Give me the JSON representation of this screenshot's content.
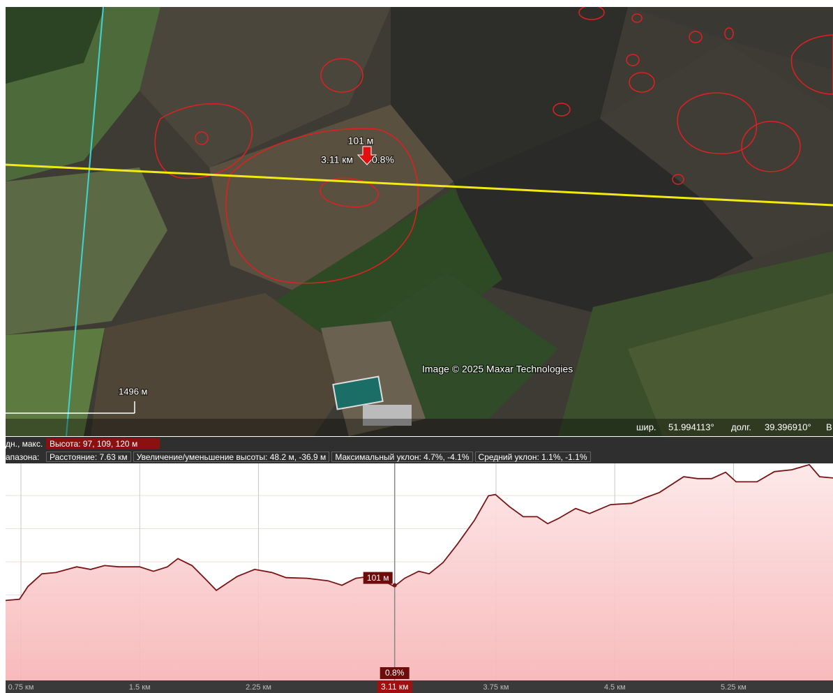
{
  "map": {
    "attribution": "Image © 2025 Maxar Technologies",
    "scale_label": "1496 м",
    "status": {
      "lat_label": "шир.",
      "lat": "51.994113°",
      "lon_label": "долг.",
      "lon": "39.396910°",
      "cut": "В"
    }
  },
  "info": {
    "row1_label": "дн., макс.",
    "elevation": "Высота: 97, 109, 120 м",
    "row2_label": "апазона:",
    "distance": "Расстояние: 7.63 км",
    "gain_loss": "Увеличение/уменьшение высоты: 48.2 м, -36.9 м",
    "max_slope": "Максимальный уклон: 4.7%, -4.1%",
    "avg_slope": "Средний уклон: 1.1%, -1.1%"
  },
  "chart_data": {
    "type": "line",
    "color": "#7a1414",
    "x": [
      0.653,
      0.741,
      0.794,
      0.882,
      0.97,
      1.102,
      1.19,
      1.278,
      1.367,
      1.499,
      1.587,
      1.675,
      1.741,
      1.83,
      1.918,
      1.984,
      2.05,
      2.116,
      2.226,
      2.336,
      2.424,
      2.557,
      2.689,
      2.777,
      2.865,
      2.953,
      3.041,
      3.107,
      3.173,
      3.262,
      3.328,
      3.416,
      3.504,
      3.613,
      3.702,
      3.746,
      3.834,
      3.922,
      4.01,
      4.076,
      4.143,
      4.253,
      4.341,
      4.473,
      4.605,
      4.693,
      4.781,
      4.935,
      5.023,
      5.112,
      5.2,
      5.266,
      5.398,
      5.508,
      5.618,
      5.728,
      5.794,
      5.878
    ],
    "values": [
      98.6,
      98.8,
      100.8,
      102.8,
      103.0,
      103.9,
      103.5,
      104.1,
      103.9,
      103.9,
      103.2,
      103.9,
      105.2,
      104.1,
      101.9,
      100.2,
      101.3,
      102.4,
      103.5,
      103.0,
      102.2,
      102.1,
      101.7,
      101.0,
      102.1,
      102.4,
      101.7,
      100.8,
      102.1,
      103.2,
      102.8,
      104.6,
      107.4,
      111.2,
      115.1,
      115.3,
      113.4,
      111.8,
      111.8,
      110.7,
      111.5,
      113.1,
      112.3,
      113.7,
      113.9,
      114.8,
      115.6,
      118.1,
      117.8,
      117.8,
      118.8,
      117.3,
      117.3,
      118.9,
      119.2,
      120.0,
      118.1,
      117.9
    ],
    "xlim": [
      0.653,
      5.878
    ],
    "ylim": [
      86.0,
      120.2
    ],
    "xticks": [
      {
        "value": 0.75,
        "label": "0.75 км"
      },
      {
        "value": 1.5,
        "label": "1.5 км"
      },
      {
        "value": 2.25,
        "label": "2.25 км"
      },
      {
        "value": 3.75,
        "label": "3.75 км"
      },
      {
        "value": 4.5,
        "label": "4.5 км"
      },
      {
        "value": 5.25,
        "label": "5.25 км"
      }
    ],
    "cursor": {
      "x": 3.11,
      "x_label": "3.11 км",
      "value": 101,
      "value_label": "101 м",
      "slope_label": "0.8%"
    }
  }
}
